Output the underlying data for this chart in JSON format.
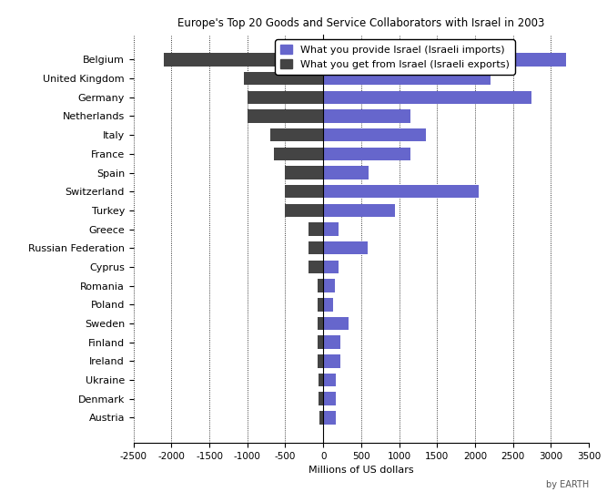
{
  "title": "Europe's Top 20 Goods and Service Collaborators with Israel in 2003",
  "xlabel": "Millions of US dollars",
  "legend_imports": "What you provide Israel (Israeli imports)",
  "legend_exports": "What you get from Israel (Israeli exports)",
  "watermark": "by EARTH",
  "countries": [
    "Belgium",
    "United Kingdom",
    "Germany",
    "Netherlands",
    "Italy",
    "France",
    "Spain",
    "Switzerland",
    "Turkey",
    "Greece",
    "Russian Federation",
    "Cyprus",
    "Romania",
    "Poland",
    "Sweden",
    "Finland",
    "Ireland",
    "Ukraine",
    "Denmark",
    "Austria"
  ],
  "imports": [
    3200,
    2200,
    2750,
    1150,
    1350,
    1150,
    600,
    2050,
    950,
    200,
    580,
    200,
    150,
    130,
    330,
    230,
    230,
    170,
    170,
    170
  ],
  "exports": [
    -2100,
    -1050,
    -1000,
    -1000,
    -700,
    -650,
    -500,
    -500,
    -500,
    -200,
    -200,
    -200,
    -80,
    -80,
    -80,
    -80,
    -80,
    -60,
    -60,
    -50
  ],
  "imports_color": "#6666cc",
  "exports_color": "#444444",
  "background_color": "#ffffff",
  "xlim": [
    -2500,
    3500
  ],
  "xticks": [
    -2500,
    -2000,
    -1500,
    -1000,
    -500,
    0,
    500,
    1000,
    1500,
    2000,
    2500,
    3000,
    3500
  ],
  "grid_color": "#000000",
  "bar_height": 0.7,
  "figsize": [
    6.67,
    5.4
  ],
  "dpi": 100,
  "title_fontsize": 8.5,
  "label_fontsize": 8,
  "tick_fontsize": 7.5
}
